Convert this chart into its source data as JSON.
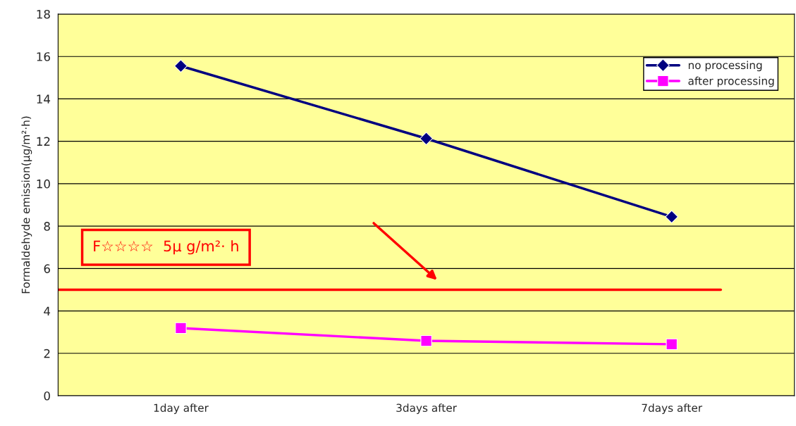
{
  "chart_data": {
    "type": "line",
    "ylabel": "Formaldehyde emission(μg/m²·h)",
    "categories": [
      "1day after",
      "3days after",
      "7days after"
    ],
    "series": [
      {
        "name": "no processing",
        "color": "#000080",
        "marker": "diamond",
        "values": [
          15.55,
          12.13,
          8.44
        ]
      },
      {
        "name": "after processing",
        "color": "#ff00ff",
        "marker": "square",
        "values": [
          3.19,
          2.59,
          2.43
        ]
      }
    ],
    "ylim": [
      0,
      18
    ],
    "yticks": [
      0,
      2,
      4,
      6,
      8,
      10,
      12,
      14,
      16,
      18
    ],
    "ref_lines": [
      {
        "axis": "y",
        "value": 5,
        "label": "F☆☆☆☆  5μ g/m²· h",
        "color": "#ff0000",
        "line_style": "solid"
      }
    ],
    "grid": "y",
    "legend": "top right"
  }
}
